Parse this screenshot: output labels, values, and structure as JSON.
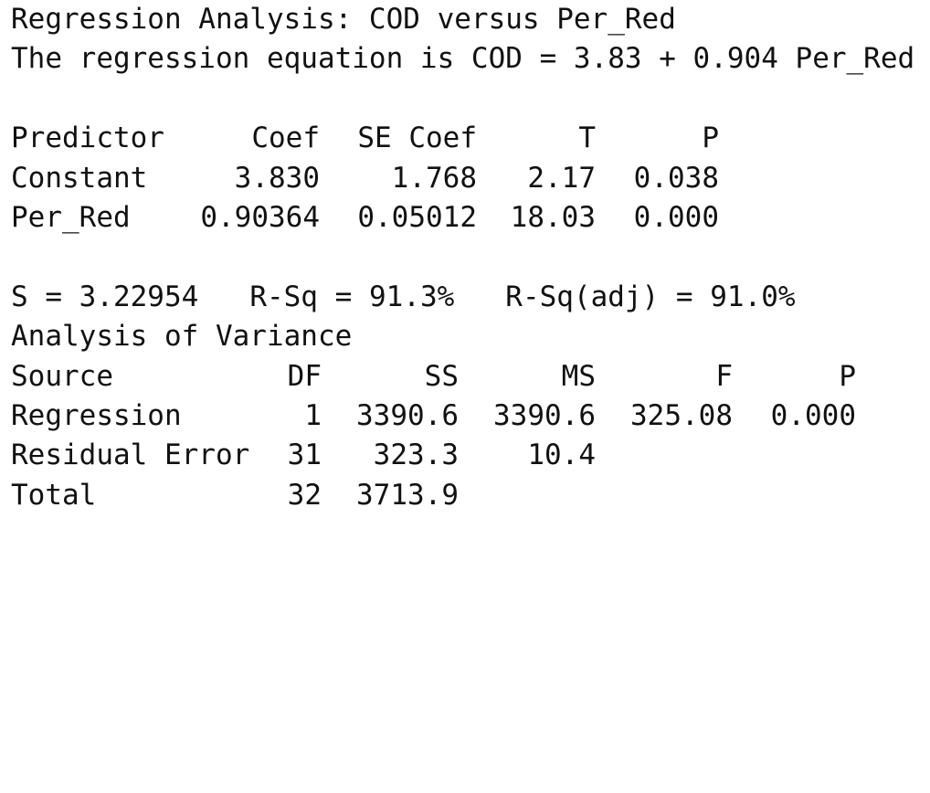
{
  "title": "Regression Analysis: COD versus Per_Red",
  "equation": "The regression equation is COD = 3.83 + 0.904 Per_Red",
  "coefficients": {
    "headers": {
      "predictor": "Predictor",
      "coef": "Coef",
      "se_coef": "SE Coef",
      "t": "T",
      "p": "P"
    },
    "rows": [
      {
        "predictor": "Constant",
        "coef": "3.830",
        "se_coef": "1.768",
        "t": "2.17",
        "p": "0.038"
      },
      {
        "predictor": "Per_Red",
        "coef": "0.90364",
        "se_coef": "0.05012",
        "t": "18.03",
        "p": "0.000"
      }
    ]
  },
  "summary": {
    "s": "S = 3.22954",
    "r_sq": "R-Sq = 91.3%",
    "r_sq_adj": "R-Sq(adj) = 91.0%"
  },
  "anova": {
    "title": "Analysis of Variance",
    "headers": {
      "source": "Source",
      "df": "DF",
      "ss": "SS",
      "ms": "MS",
      "f": "F",
      "p": "P"
    },
    "rows": [
      {
        "source": "Regression",
        "df": "1",
        "ss": "3390.6",
        "ms": "3390.6",
        "f": "325.08",
        "p": "0.000"
      },
      {
        "source": "Residual Error",
        "df": "31",
        "ss": "323.3",
        "ms": "10.4",
        "f": "",
        "p": ""
      },
      {
        "source": "Total",
        "df": "32",
        "ss": "3713.9",
        "ms": "",
        "f": "",
        "p": ""
      }
    ]
  }
}
